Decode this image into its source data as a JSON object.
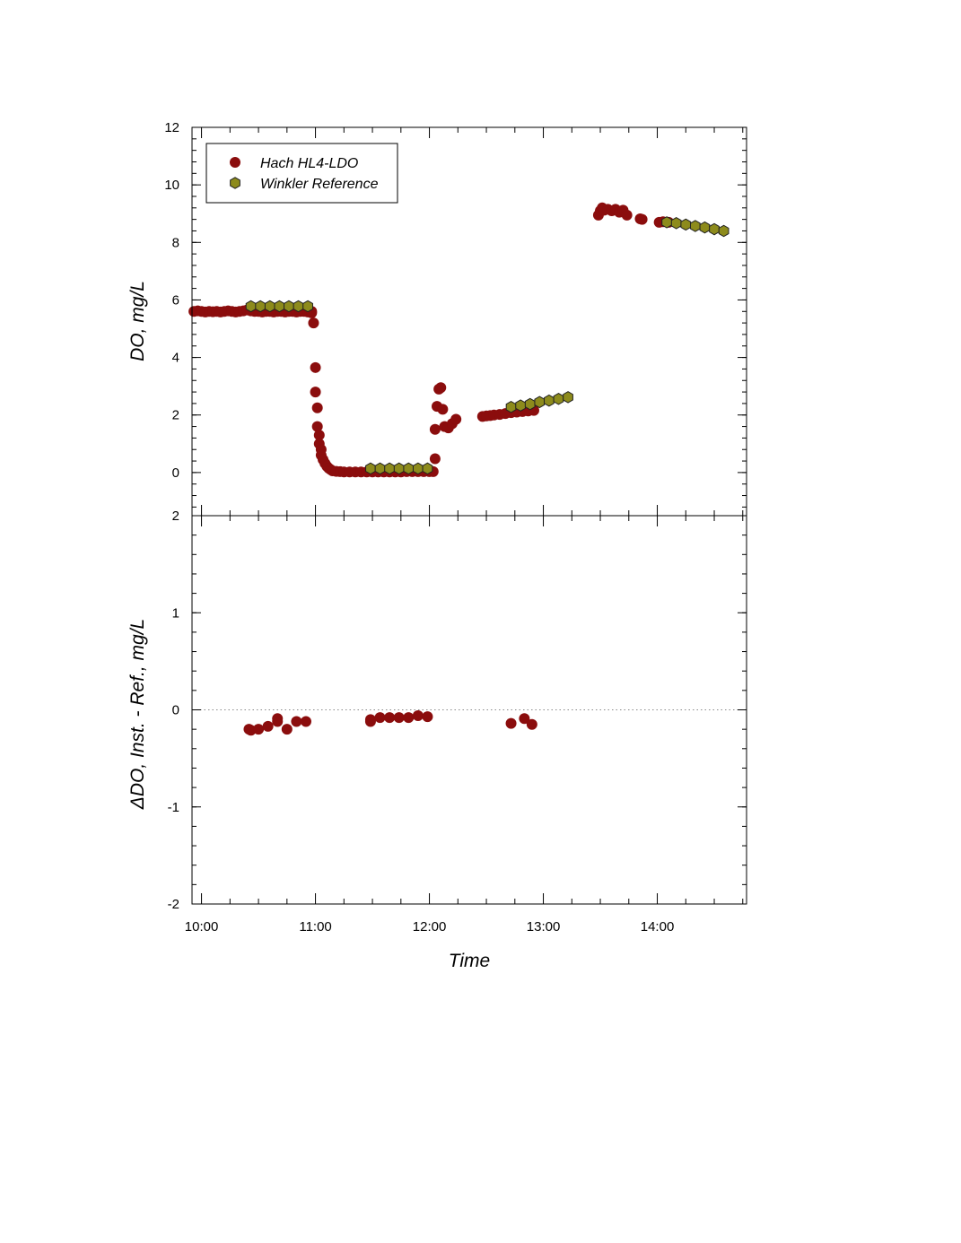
{
  "chart_data": [
    {
      "type": "scatter",
      "panel": "top",
      "ylabel": "DO, mg/L",
      "xlabel": "",
      "xlim": [
        "09:55",
        "14:47"
      ],
      "ylim": [
        -1.5,
        12
      ],
      "yticks": [
        0,
        2,
        4,
        6,
        8,
        10,
        12
      ],
      "ytick_labels": [
        "0",
        "2",
        "4",
        "6",
        "8",
        "10",
        "12"
      ],
      "grid": false,
      "legend": "top-left",
      "series": [
        {
          "name": "Hach HL4-LDO",
          "color": "#8b0d0d",
          "marker": "circle",
          "points": [
            [
              "09:56",
              5.6
            ],
            [
              "09:58",
              5.62
            ],
            [
              "10:00",
              5.6
            ],
            [
              "10:02",
              5.58
            ],
            [
              "10:04",
              5.6
            ],
            [
              "10:06",
              5.59
            ],
            [
              "10:08",
              5.6
            ],
            [
              "10:10",
              5.58
            ],
            [
              "10:12",
              5.6
            ],
            [
              "10:14",
              5.62
            ],
            [
              "10:16",
              5.6
            ],
            [
              "10:18",
              5.58
            ],
            [
              "10:20",
              5.6
            ],
            [
              "10:22",
              5.62
            ],
            [
              "10:24",
              5.65
            ],
            [
              "10:26",
              5.62
            ],
            [
              "10:28",
              5.6
            ],
            [
              "10:30",
              5.6
            ],
            [
              "10:32",
              5.58
            ],
            [
              "10:34",
              5.6
            ],
            [
              "10:36",
              5.6
            ],
            [
              "10:38",
              5.58
            ],
            [
              "10:40",
              5.6
            ],
            [
              "10:42",
              5.6
            ],
            [
              "10:44",
              5.58
            ],
            [
              "10:46",
              5.6
            ],
            [
              "10:48",
              5.6
            ],
            [
              "10:50",
              5.58
            ],
            [
              "10:52",
              5.6
            ],
            [
              "10:54",
              5.6
            ],
            [
              "10:56",
              5.58
            ],
            [
              "10:58",
              5.6
            ],
            [
              "10:58",
              5.55
            ],
            [
              "10:59",
              5.2
            ],
            [
              "11:00",
              3.65
            ],
            [
              "11:00",
              2.8
            ],
            [
              "11:01",
              2.25
            ],
            [
              "11:01",
              1.6
            ],
            [
              "11:02",
              1.3
            ],
            [
              "11:02",
              1.0
            ],
            [
              "11:03",
              0.8
            ],
            [
              "11:03",
              0.6
            ],
            [
              "11:04",
              0.45
            ],
            [
              "11:05",
              0.32
            ],
            [
              "11:06",
              0.22
            ],
            [
              "11:07",
              0.15
            ],
            [
              "11:08",
              0.1
            ],
            [
              "11:09",
              0.06
            ],
            [
              "11:11",
              0.04
            ],
            [
              "11:13",
              0.03
            ],
            [
              "11:15",
              0.02
            ],
            [
              "11:18",
              0.02
            ],
            [
              "11:21",
              0.02
            ],
            [
              "11:24",
              0.02
            ],
            [
              "11:27",
              0.02
            ],
            [
              "11:30",
              0.02
            ],
            [
              "11:33",
              0.02
            ],
            [
              "11:36",
              0.02
            ],
            [
              "11:39",
              0.02
            ],
            [
              "11:42",
              0.02
            ],
            [
              "11:45",
              0.02
            ],
            [
              "11:48",
              0.03
            ],
            [
              "11:51",
              0.03
            ],
            [
              "11:54",
              0.03
            ],
            [
              "11:57",
              0.03
            ],
            [
              "12:00",
              0.03
            ],
            [
              "12:02",
              0.03
            ],
            [
              "12:03",
              0.48
            ],
            [
              "12:03",
              1.5
            ],
            [
              "12:04",
              2.3
            ],
            [
              "12:05",
              2.9
            ],
            [
              "12:06",
              2.95
            ],
            [
              "12:07",
              2.2
            ],
            [
              "12:08",
              1.6
            ],
            [
              "12:10",
              1.55
            ],
            [
              "12:12",
              1.7
            ],
            [
              "12:14",
              1.85
            ],
            [
              "12:28",
              1.95
            ],
            [
              "12:30",
              1.97
            ],
            [
              "12:32",
              1.98
            ],
            [
              "12:34",
              2.0
            ],
            [
              "12:37",
              2.02
            ],
            [
              "12:40",
              2.05
            ],
            [
              "12:43",
              2.08
            ],
            [
              "12:46",
              2.1
            ],
            [
              "12:49",
              2.12
            ],
            [
              "12:52",
              2.14
            ],
            [
              "12:55",
              2.16
            ],
            [
              "13:29",
              8.95
            ],
            [
              "13:30",
              9.1
            ],
            [
              "13:31",
              9.2
            ],
            [
              "13:32",
              9.12
            ],
            [
              "13:34",
              9.15
            ],
            [
              "13:36",
              9.1
            ],
            [
              "13:38",
              9.15
            ],
            [
              "13:40",
              9.05
            ],
            [
              "13:42",
              9.12
            ],
            [
              "13:44",
              8.95
            ],
            [
              "13:51",
              8.82
            ],
            [
              "13:52",
              8.8
            ],
            [
              "14:01",
              8.7
            ],
            [
              "14:03",
              8.72
            ],
            [
              "14:06",
              8.7
            ]
          ]
        },
        {
          "name": "Winkler Reference",
          "color": "#8d8b1c",
          "marker": "hexagon",
          "points": [
            [
              "10:26",
              5.78
            ],
            [
              "10:31",
              5.78
            ],
            [
              "10:36",
              5.78
            ],
            [
              "10:41",
              5.78
            ],
            [
              "10:46",
              5.78
            ],
            [
              "10:51",
              5.78
            ],
            [
              "10:56",
              5.78
            ],
            [
              "11:29",
              0.14
            ],
            [
              "11:34",
              0.14
            ],
            [
              "11:39",
              0.14
            ],
            [
              "11:44",
              0.14
            ],
            [
              "11:49",
              0.14
            ],
            [
              "11:54",
              0.14
            ],
            [
              "11:59",
              0.14
            ],
            [
              "12:43",
              2.28
            ],
            [
              "12:48",
              2.33
            ],
            [
              "12:53",
              2.38
            ],
            [
              "12:58",
              2.45
            ],
            [
              "13:03",
              2.5
            ],
            [
              "13:08",
              2.56
            ],
            [
              "13:13",
              2.62
            ],
            [
              "14:05",
              8.7
            ],
            [
              "14:10",
              8.67
            ],
            [
              "14:15",
              8.62
            ],
            [
              "14:20",
              8.57
            ],
            [
              "14:25",
              8.52
            ],
            [
              "14:30",
              8.46
            ],
            [
              "14:35",
              8.4
            ]
          ]
        }
      ]
    },
    {
      "type": "scatter",
      "panel": "bottom",
      "ylabel": "ΔDO, Inst. - Ref., mg/L",
      "xlabel": "Time",
      "xlim": [
        "09:55",
        "14:47"
      ],
      "ylim": [
        -2,
        2
      ],
      "yticks": [
        -2,
        -1,
        0,
        1,
        2
      ],
      "ytick_labels": [
        "-2",
        "-1",
        "0",
        "1",
        "2"
      ],
      "xticks": [
        "10:00",
        "11:00",
        "12:00",
        "13:00",
        "14:00"
      ],
      "xtick_labels": [
        "10:00",
        "11:00",
        "12:00",
        "13:00",
        "14:00"
      ],
      "zero_line": "dotted",
      "grid": false,
      "series": [
        {
          "name": "Hach HL4-LDO",
          "color": "#8b0d0d",
          "marker": "circle",
          "points": [
            [
              "10:25",
              -0.2
            ],
            [
              "10:26",
              -0.21
            ],
            [
              "10:30",
              -0.2
            ],
            [
              "10:35",
              -0.17
            ],
            [
              "10:40",
              -0.12
            ],
            [
              "10:40",
              -0.09
            ],
            [
              "10:45",
              -0.2
            ],
            [
              "10:50",
              -0.12
            ],
            [
              "10:55",
              -0.12
            ],
            [
              "11:29",
              -0.1
            ],
            [
              "11:29",
              -0.12
            ],
            [
              "11:34",
              -0.08
            ],
            [
              "11:39",
              -0.08
            ],
            [
              "11:44",
              -0.08
            ],
            [
              "11:49",
              -0.08
            ],
            [
              "11:54",
              -0.06
            ],
            [
              "11:59",
              -0.07
            ],
            [
              "12:43",
              -0.14
            ],
            [
              "12:50",
              -0.09
            ],
            [
              "12:54",
              -0.15
            ]
          ]
        }
      ]
    }
  ]
}
